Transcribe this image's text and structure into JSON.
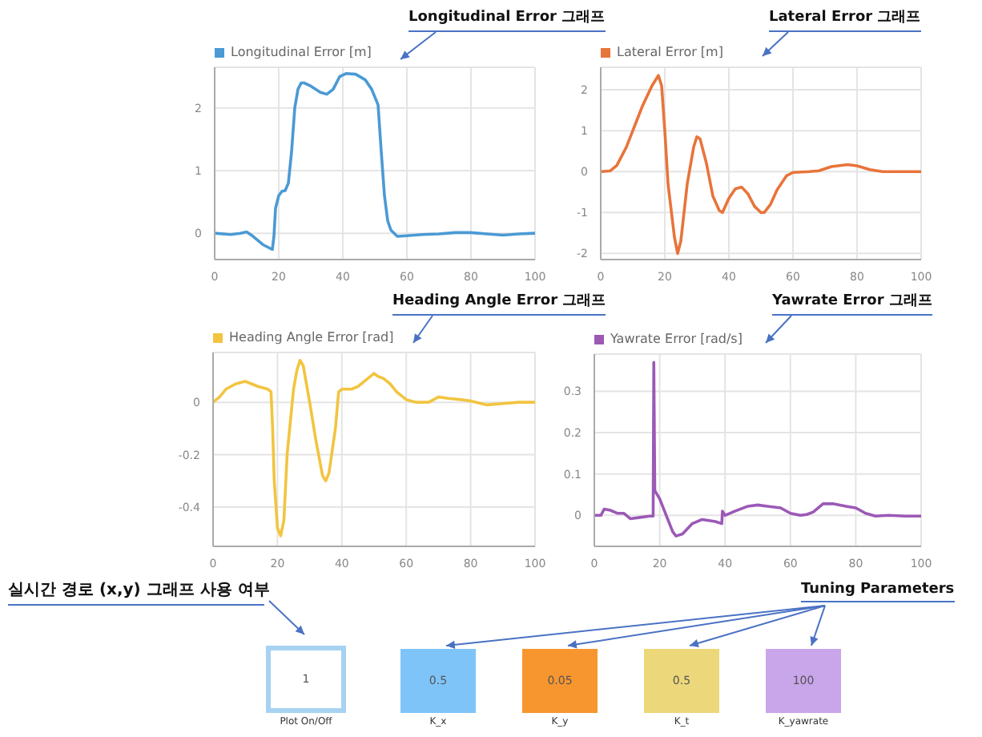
{
  "chart_data": [
    {
      "type": "line",
      "title": "Longitudinal Error 그래프",
      "legend": "top left",
      "grid": true,
      "xlim": [
        0,
        100
      ],
      "xticks": [
        0,
        20,
        40,
        60,
        80,
        100
      ],
      "ylim": [
        -0.42,
        2.65
      ],
      "yticks": [
        0,
        1,
        2
      ],
      "x": [
        0,
        5,
        8,
        10,
        12,
        15,
        18,
        18.5,
        19,
        20,
        21,
        22,
        23,
        24,
        25,
        26,
        27,
        28,
        30,
        33,
        35,
        37,
        39,
        41,
        44,
        47,
        49,
        51,
        52,
        53,
        54,
        55,
        57,
        60,
        65,
        70,
        75,
        80,
        85,
        90,
        95,
        100
      ],
      "series": [
        {
          "name": "Longitudinal Error [m]",
          "color": "#4a9ad4",
          "values": [
            0,
            -0.02,
            0,
            0.02,
            -0.05,
            -0.18,
            -0.26,
            -0.05,
            0.4,
            0.6,
            0.67,
            0.68,
            0.8,
            1.3,
            2.0,
            2.3,
            2.4,
            2.4,
            2.35,
            2.25,
            2.22,
            2.3,
            2.5,
            2.55,
            2.54,
            2.45,
            2.3,
            2.05,
            1.3,
            0.6,
            0.2,
            0.05,
            -0.05,
            -0.04,
            -0.02,
            -0.01,
            0.01,
            0.01,
            -0.01,
            -0.03,
            -0.01,
            0
          ]
        }
      ]
    },
    {
      "type": "line",
      "title": "Lateral Error 그래프",
      "legend": "top left",
      "grid": true,
      "xlim": [
        0,
        100
      ],
      "xticks": [
        0,
        20,
        40,
        60,
        80,
        100
      ],
      "ylim": [
        -2.15,
        2.55
      ],
      "yticks": [
        -2,
        -1,
        0,
        1,
        2
      ],
      "x": [
        0,
        3,
        5,
        8,
        10,
        13,
        16,
        18,
        19,
        20,
        21,
        23,
        24,
        25,
        27,
        29,
        30,
        31,
        33,
        35,
        37,
        38,
        40,
        42,
        44,
        46,
        48,
        50,
        51,
        53,
        55,
        58,
        60,
        65,
        68,
        72,
        77,
        80,
        84,
        88,
        95,
        100
      ],
      "series": [
        {
          "name": "Lateral Error [m]",
          "color": "#e8743b",
          "values": [
            0,
            0.02,
            0.15,
            0.6,
            1.0,
            1.6,
            2.1,
            2.35,
            2.1,
            1.0,
            -0.3,
            -1.6,
            -2.0,
            -1.7,
            -0.3,
            0.6,
            0.85,
            0.8,
            0.2,
            -0.6,
            -0.95,
            -1.0,
            -0.65,
            -0.42,
            -0.38,
            -0.55,
            -0.85,
            -1.0,
            -1.0,
            -0.8,
            -0.45,
            -0.1,
            -0.02,
            0,
            0.02,
            0.12,
            0.17,
            0.14,
            0.05,
            0,
            0,
            0
          ]
        }
      ]
    },
    {
      "type": "line",
      "title": "Heading Angle Error 그래프",
      "legend": "top left",
      "grid": true,
      "xlim": [
        0,
        100
      ],
      "xticks": [
        0,
        20,
        40,
        60,
        80,
        100
      ],
      "ylim": [
        -0.55,
        0.19
      ],
      "yticks": [
        -0.4,
        -0.2,
        0
      ],
      "x": [
        0,
        2,
        4,
        7,
        10,
        12,
        14,
        17,
        18,
        18.5,
        19,
        20,
        21,
        22,
        23,
        25,
        26,
        27,
        28,
        30,
        32,
        34,
        35,
        36,
        38,
        39,
        40,
        43,
        45,
        48,
        50,
        51,
        53,
        55,
        57,
        60,
        63,
        67,
        70,
        73,
        77,
        80,
        85,
        90,
        95,
        100
      ],
      "series": [
        {
          "name": "Heading Angle Error [rad]",
          "color": "#f2c440",
          "values": [
            0,
            0.02,
            0.05,
            0.07,
            0.08,
            0.07,
            0.06,
            0.05,
            0.04,
            -0.1,
            -0.3,
            -0.48,
            -0.51,
            -0.45,
            -0.2,
            0.05,
            0.12,
            0.16,
            0.14,
            0.0,
            -0.15,
            -0.28,
            -0.3,
            -0.27,
            -0.1,
            0.04,
            0.05,
            0.05,
            0.06,
            0.09,
            0.11,
            0.1,
            0.09,
            0.07,
            0.04,
            0.01,
            0,
            0,
            0.02,
            0.015,
            0.01,
            0.005,
            -0.01,
            -0.005,
            0,
            0
          ]
        }
      ]
    },
    {
      "type": "line",
      "title": "Yawrate Error 그래프",
      "legend": "top left",
      "grid": true,
      "xlim": [
        0,
        100
      ],
      "xticks": [
        0,
        20,
        40,
        60,
        80,
        100
      ],
      "ylim": [
        -0.075,
        0.39
      ],
      "yticks": [
        0,
        0.1,
        0.2,
        0.3
      ],
      "x": [
        0,
        2,
        3,
        5,
        7,
        9,
        11,
        14,
        17,
        18,
        18.2,
        18.5,
        20,
        22,
        24,
        25,
        27,
        30,
        33,
        37,
        39,
        39.2,
        40,
        43,
        47,
        50,
        53,
        57,
        60,
        63,
        65,
        67,
        70,
        73,
        77,
        80,
        83,
        86,
        90,
        95,
        100
      ],
      "series": [
        {
          "name": "Yawrate Error [rad/s]",
          "color": "#9b59b6",
          "values": [
            0,
            0,
            0.015,
            0.012,
            0.005,
            0.005,
            -0.008,
            -0.005,
            -0.002,
            -0.002,
            0.37,
            0.06,
            0.04,
            0,
            -0.04,
            -0.05,
            -0.045,
            -0.02,
            -0.01,
            -0.015,
            -0.02,
            0.01,
            0,
            0.01,
            0.022,
            0.025,
            0.022,
            0.018,
            0.005,
            0,
            0.002,
            0.008,
            0.028,
            0.028,
            0.022,
            0.018,
            0.005,
            -0.002,
            0,
            -0.002,
            -0.002
          ]
        }
      ]
    },
    {
      "type": "other",
      "annotations": [
        "실시간 경로 (x,y) 그래프 사용 여부",
        "Tuning Parameters"
      ],
      "categories": [
        "Plot On/Off",
        "K_x",
        "K_y",
        "K_t",
        "K_yawrate"
      ],
      "values": [
        1,
        0.5,
        0.05,
        0.5,
        100
      ],
      "colors": [
        "#ffffff",
        "#7fc4f8",
        "#f7962f",
        "#ecd77a",
        "#c9a5ea"
      ],
      "data_labels": true
    }
  ]
}
